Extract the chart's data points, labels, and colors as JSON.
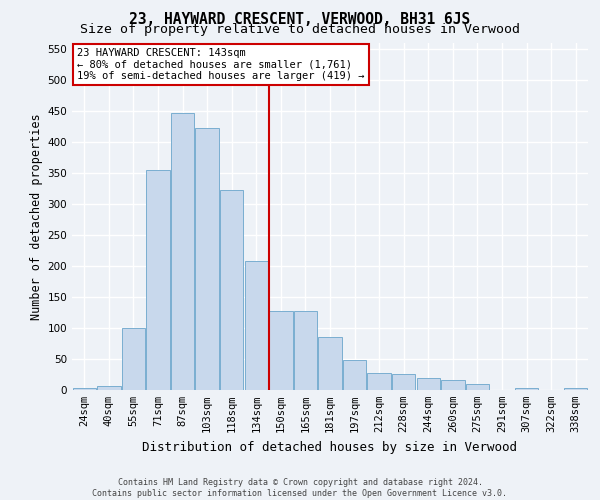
{
  "title": "23, HAYWARD CRESCENT, VERWOOD, BH31 6JS",
  "subtitle": "Size of property relative to detached houses in Verwood",
  "xlabel": "Distribution of detached houses by size in Verwood",
  "ylabel": "Number of detached properties",
  "footer_line1": "Contains HM Land Registry data © Crown copyright and database right 2024.",
  "footer_line2": "Contains public sector information licensed under the Open Government Licence v3.0.",
  "categories": [
    "24sqm",
    "40sqm",
    "55sqm",
    "71sqm",
    "87sqm",
    "103sqm",
    "118sqm",
    "134sqm",
    "150sqm",
    "165sqm",
    "181sqm",
    "197sqm",
    "212sqm",
    "228sqm",
    "244sqm",
    "260sqm",
    "275sqm",
    "291sqm",
    "307sqm",
    "322sqm",
    "338sqm"
  ],
  "values": [
    4,
    6,
    100,
    355,
    447,
    422,
    322,
    208,
    128,
    128,
    86,
    49,
    28,
    25,
    20,
    16,
    9,
    0,
    4,
    0,
    3
  ],
  "bar_color": "#c8d8ec",
  "bar_edge_color": "#7aaed0",
  "vline_x_index": 7.5,
  "vline_color": "#cc0000",
  "annotation_text": "23 HAYWARD CRESCENT: 143sqm\n← 80% of detached houses are smaller (1,761)\n19% of semi-detached houses are larger (419) →",
  "annotation_box_edge_color": "#cc0000",
  "ylim": [
    0,
    560
  ],
  "yticks": [
    0,
    50,
    100,
    150,
    200,
    250,
    300,
    350,
    400,
    450,
    500,
    550
  ],
  "background_color": "#eef2f7",
  "grid_color": "#ffffff",
  "title_fontsize": 10.5,
  "subtitle_fontsize": 9.5,
  "xlabel_fontsize": 9,
  "ylabel_fontsize": 8.5,
  "tick_fontsize": 7.5,
  "annotation_fontsize": 7.5,
  "footer_fontsize": 6
}
